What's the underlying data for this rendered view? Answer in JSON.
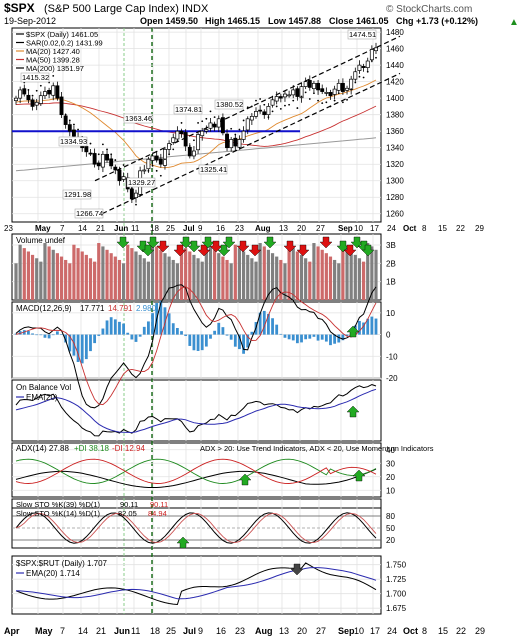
{
  "header": {
    "symbol": "$SPX",
    "name": "(S&P 500 Large Cap Index) INDX",
    "date": "19-Sep-2012",
    "open": "Open 1459.50",
    "high": "High 1465.15",
    "low": "Low 1457.88",
    "close": "Close 1461.05",
    "chg": "Chg +1.73 (+0.12%)",
    "watermark": "© StockCharts.com",
    "arrow": "▲"
  },
  "colors": {
    "up": "#22aa22",
    "down": "#dd1111",
    "vol_up": "#808080",
    "vol_down": "#cd6a6a",
    "ma20": "#e08a30",
    "ma50": "#c83232",
    "ma200": "#999999",
    "macd_hist": "#3a8fd0",
    "ema": "#2b2bb0",
    "support": "#1010cc",
    "grid": "#e2e2e2"
  },
  "dates": {
    "top": [
      "23",
      "May",
      "7",
      "14",
      "21",
      "Jun",
      "11",
      "18",
      "25",
      "Jul",
      "9",
      "16",
      "23",
      "Aug",
      "13",
      "20",
      "27",
      "Sep",
      "10",
      "17",
      "24",
      "Oct",
      "8",
      "15",
      "22",
      "29"
    ],
    "bottom": [
      "Apr",
      "May",
      "7",
      "14",
      "21",
      "Jun",
      "11",
      "18",
      "25",
      "Jul",
      "9",
      "16",
      "23",
      "Aug",
      "13",
      "20",
      "27",
      "Sep",
      "10",
      "17",
      "24",
      "Oct",
      "8",
      "15",
      "22",
      "29"
    ]
  },
  "panels": {
    "price": {
      "legend": [
        "$SPX (Daily) 1461.05",
        "SAR(0.02,0.2) 1431.99",
        "MA(20) 1427.40",
        "MA(50) 1399.28",
        "MA(200) 1351.97"
      ],
      "axis": [
        "1480",
        "1460",
        "1440",
        "1420",
        "1400",
        "1380",
        "1360",
        "1340",
        "1320",
        "1300",
        "1280",
        "1260"
      ],
      "annotations": [
        "1415.32",
        "1334.93",
        "1291.98",
        "1266.74",
        "1363.46",
        "1374.81",
        "1380.52",
        "1325.41",
        "1474.51",
        "1329.27"
      ]
    },
    "volume": {
      "legend": "Volume undef",
      "axis": [
        "3B",
        "2B",
        "1B"
      ]
    },
    "macd": {
      "legend": [
        "MACD(12,26,9)",
        "17.771",
        "14.791",
        "2.980"
      ],
      "axis": [
        "10",
        "0",
        "-10",
        "-20"
      ]
    },
    "obv": {
      "legend": [
        "On Balance Vol",
        "EMA(20)"
      ]
    },
    "adx": {
      "legend": [
        "ADX(14) 27.88",
        "+DI 38.18",
        "-DI 12.94"
      ],
      "note": "ADX > 20: Use Trend Indicators, ADX < 20, Use Momentum Indicators",
      "axis": [
        "40",
        "30",
        "20",
        "10"
      ]
    },
    "slow1": {
      "legend": [
        "Slow STO %K(39) %D(1)",
        "90.11",
        "90.11"
      ],
      "axis": [
        "80",
        "50",
        "20"
      ]
    },
    "slow2": {
      "legend": [
        "Slow STO %K(14) %D(1)",
        "82.05",
        "84.94"
      ],
      "axis": [
        "80",
        "50",
        "20"
      ]
    },
    "ratio": {
      "legend": [
        "$SPX:$RUT (Daily) 1.707",
        "EMA(20) 1.714"
      ],
      "axis": [
        "1.750",
        "1.725",
        "1.700",
        "1.675"
      ]
    }
  },
  "chart_data": {
    "type": "candlestick",
    "title": "$SPX (S&P 500 Large Cap Index) INDX",
    "timeframe": "Daily",
    "dates_shown": "Apr 23 2012 – Sep 19 2012",
    "price_range": [
      1250,
      1485
    ],
    "ohlc_close_path": [
      1400,
      1410,
      1405,
      1398,
      1390,
      1395,
      1403,
      1408,
      1405,
      1415,
      1400,
      1380,
      1368,
      1360,
      1354,
      1350,
      1340,
      1335,
      1333,
      1320,
      1318,
      1332,
      1325,
      1318,
      1313,
      1300,
      1305,
      1290,
      1278,
      1285,
      1312,
      1313,
      1326,
      1330,
      1325,
      1320,
      1338,
      1345,
      1352,
      1360,
      1357,
      1342,
      1330,
      1336,
      1356,
      1360,
      1362,
      1370,
      1365,
      1375,
      1358,
      1340,
      1350,
      1342,
      1350,
      1360,
      1375,
      1378,
      1384,
      1385,
      1380,
      1390,
      1398,
      1402,
      1400,
      1405,
      1404,
      1410,
      1402,
      1414,
      1420,
      1413,
      1418,
      1410,
      1408,
      1407,
      1403,
      1411,
      1418,
      1408,
      1412,
      1423,
      1432,
      1440,
      1437,
      1445,
      1459,
      1461
    ],
    "sar": 1431.99,
    "ma20": 1427.4,
    "ma50": 1399.28,
    "ma200": 1351.97,
    "support_level": 1360,
    "volume_axis_B": [
      1,
      2,
      3
    ],
    "macd": {
      "macd": 17.771,
      "signal": 14.791,
      "hist": 2.98,
      "range": [
        -20,
        15
      ]
    },
    "adx": {
      "adx": 27.88,
      "plus_di": 38.18,
      "minus_di": 12.94,
      "range": [
        5,
        45
      ]
    },
    "slow_sto_39": {
      "k": 90.11,
      "d": 90.11
    },
    "slow_sto_14": {
      "k": 82.05,
      "d": 84.94
    },
    "spx_rut_ratio": {
      "value": 1.707,
      "ema20": 1.714,
      "range": [
        1.665,
        1.765
      ]
    }
  }
}
